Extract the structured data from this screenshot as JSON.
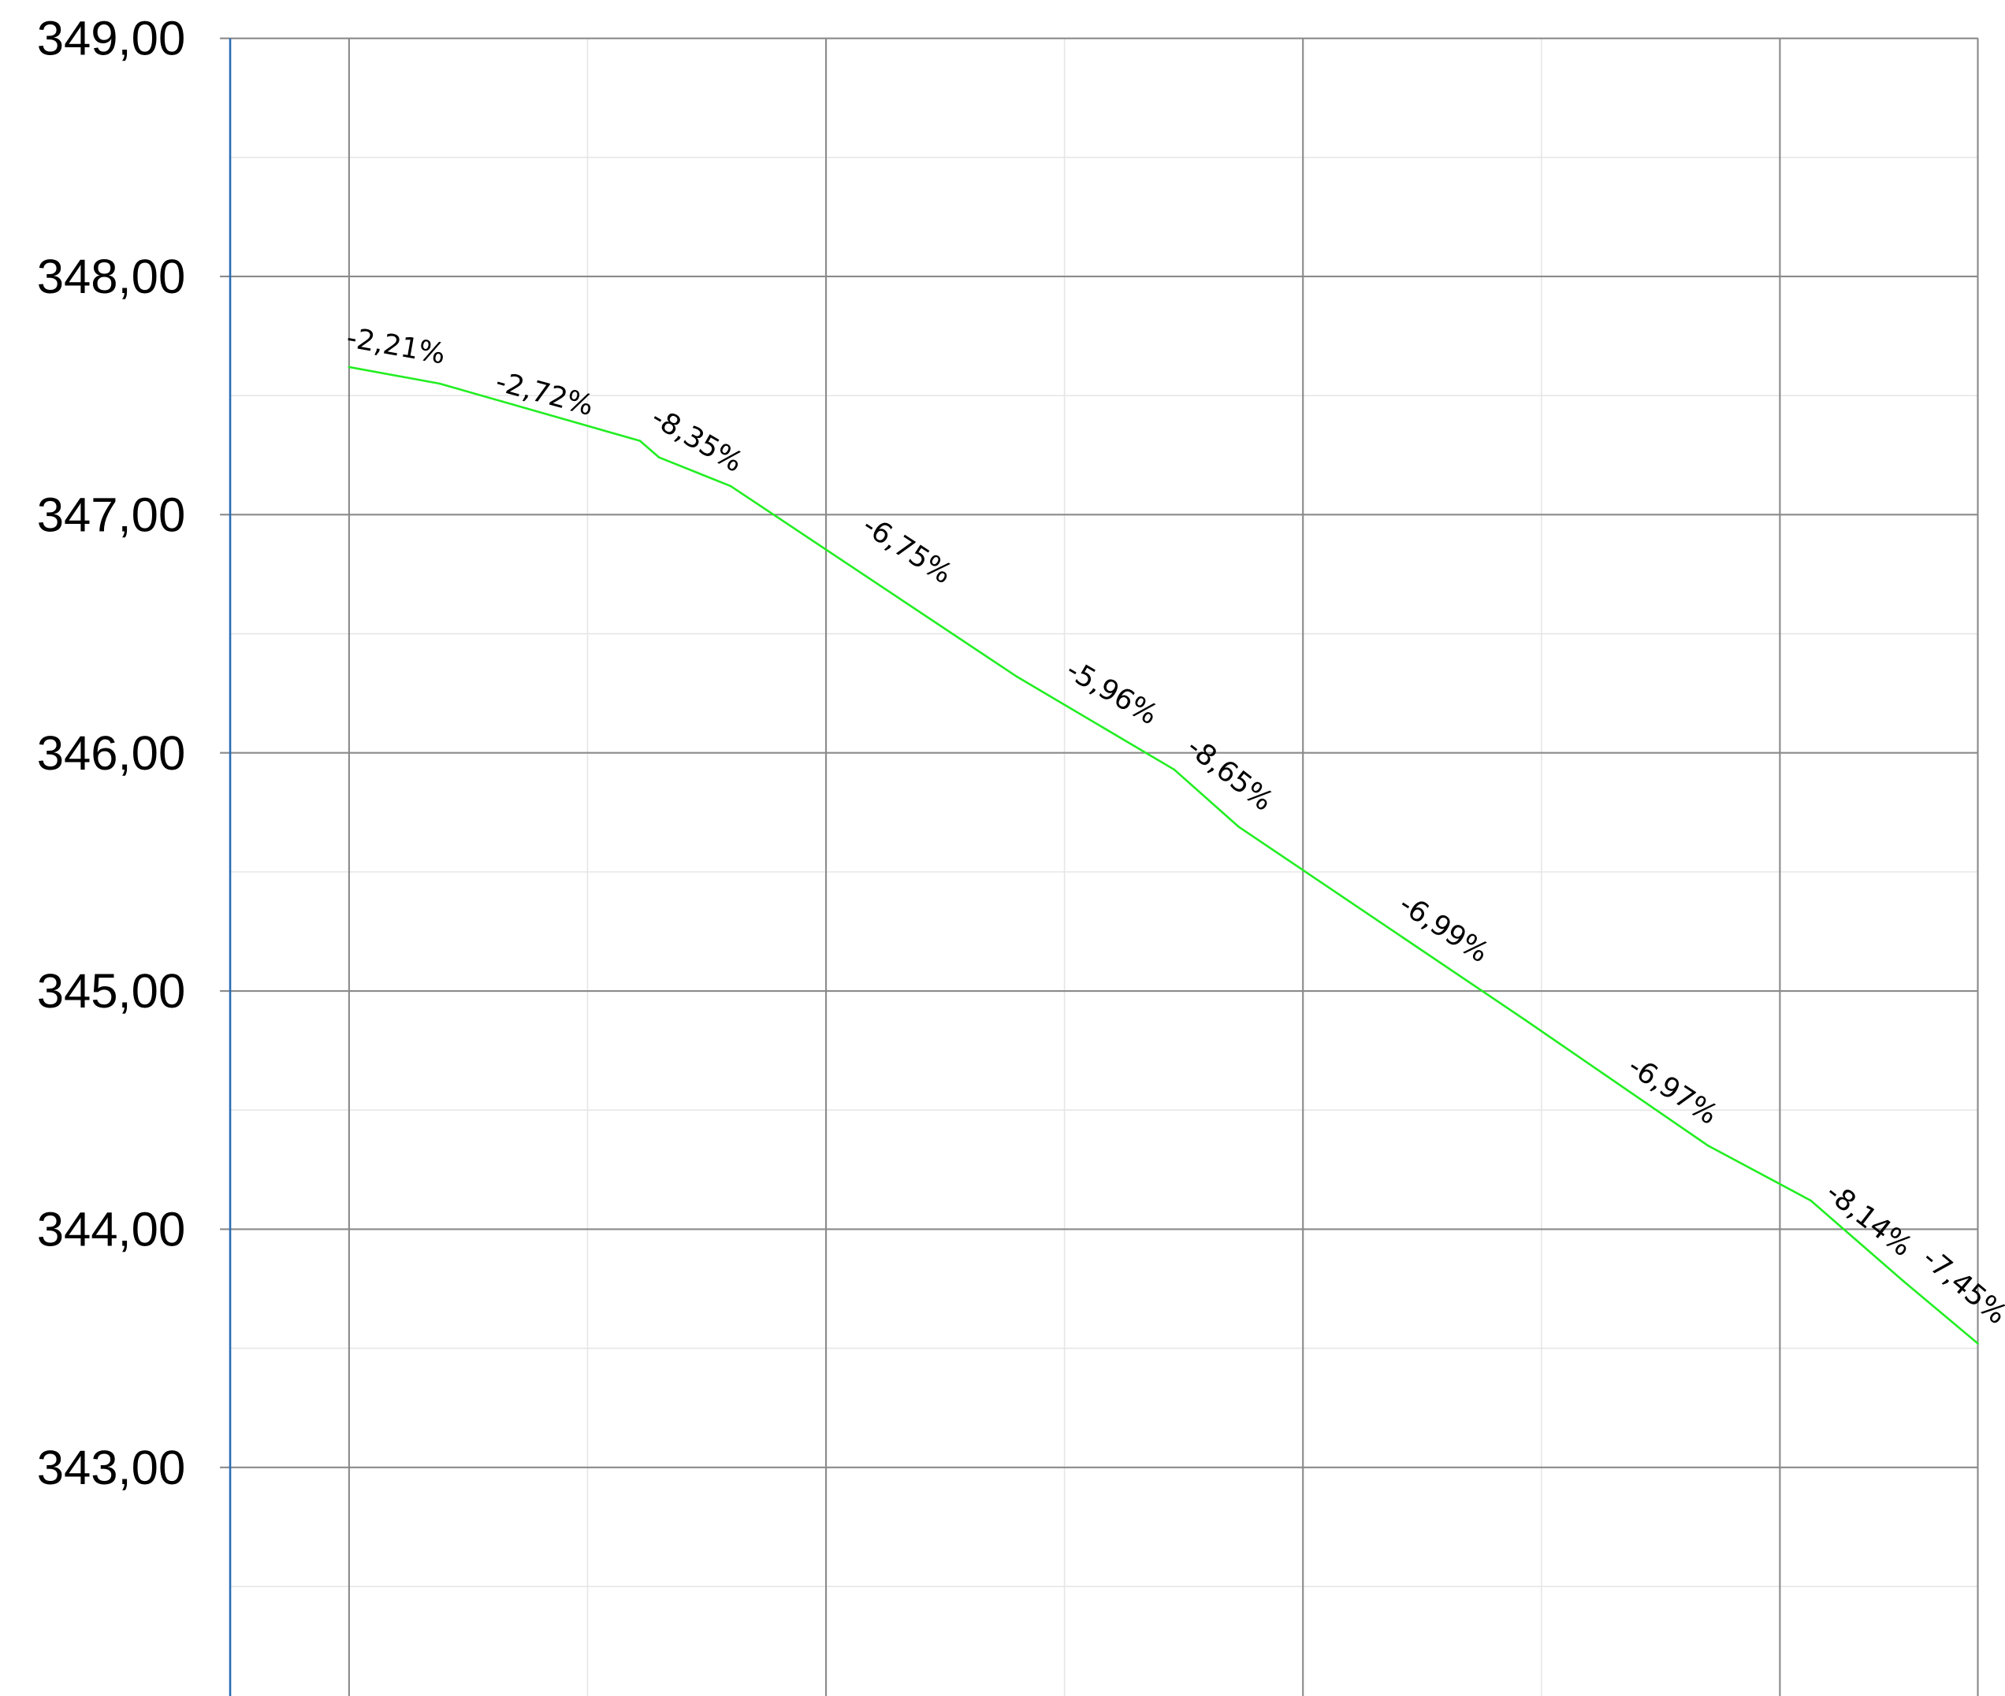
{
  "chart_data": {
    "type": "line",
    "title": "",
    "xlabel": "",
    "ylabel": "",
    "ylim": [
      342.0,
      349.0
    ],
    "xlim": [
      -0.5,
      6.83
    ],
    "y_ticks": [
      "349,00",
      "348,00",
      "347,00",
      "346,00",
      "345,00",
      "344,00",
      "343,00"
    ],
    "y_tick_values": [
      349,
      348,
      347,
      346,
      345,
      344,
      343
    ],
    "x_major_gridlines": [
      0,
      2,
      4,
      6,
      6.83
    ],
    "x_minor_gridlines": [
      1,
      3,
      5
    ],
    "y_minor_step": 0.5,
    "grid": true,
    "legend": "none",
    "colors": {
      "line": "#22ee22",
      "major_grid": "#8a8a8a",
      "minor_grid": "#e6e6e6",
      "y_axis": "#2a6db5"
    },
    "series": [
      {
        "values": [
          [
            0.0,
            347.62
          ],
          [
            0.38,
            347.55
          ],
          [
            1.22,
            347.31
          ],
          [
            1.3,
            347.24
          ],
          [
            1.6,
            347.12
          ],
          [
            2.8,
            346.32
          ],
          [
            3.46,
            345.93
          ],
          [
            3.73,
            345.69
          ],
          [
            4.93,
            344.88
          ],
          [
            5.7,
            344.35
          ],
          [
            6.13,
            344.12
          ],
          [
            6.52,
            343.78
          ],
          [
            6.83,
            343.52
          ]
        ]
      }
    ],
    "annotations": [
      {
        "text": "-2,21%",
        "x": 0.19,
        "y": 347.67,
        "angle": 10
      },
      {
        "text": "-2,72%",
        "x": 0.81,
        "y": 347.47,
        "angle": 15
      },
      {
        "text": "-8,35%",
        "x": 1.44,
        "y": 347.28,
        "angle": 30
      },
      {
        "text": "-6,75%",
        "x": 2.32,
        "y": 346.82,
        "angle": 33
      },
      {
        "text": "-5,96%",
        "x": 3.18,
        "y": 346.22,
        "angle": 30
      },
      {
        "text": "-8,65%",
        "x": 3.67,
        "y": 345.88,
        "angle": 38
      },
      {
        "text": "-6,99%",
        "x": 4.57,
        "y": 345.23,
        "angle": 33
      },
      {
        "text": "-6,97%",
        "x": 5.53,
        "y": 344.55,
        "angle": 33
      },
      {
        "text": "-8,14%",
        "x": 6.35,
        "y": 344.01,
        "angle": 38
      },
      {
        "text": "-7,45%",
        "x": 6.75,
        "y": 343.73,
        "angle": 40
      }
    ]
  }
}
